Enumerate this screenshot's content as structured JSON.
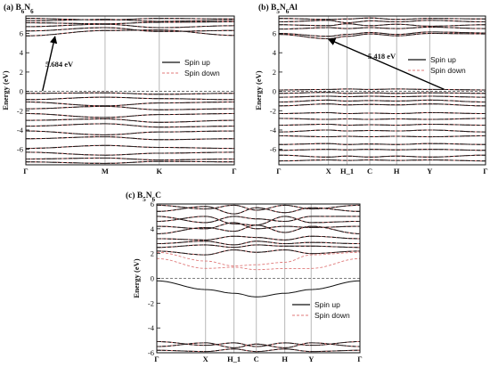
{
  "chart_data": [
    {
      "type": "line",
      "panel": "a",
      "title": "(a) B",
      "title_parts": [
        {
          "t": "(a) B",
          "sub": false
        },
        {
          "t": "6",
          "sub": true
        },
        {
          "t": "N",
          "sub": false
        },
        {
          "t": "6",
          "sub": true
        }
      ],
      "ylabel": "Energy (eV)",
      "ylim": [
        -7.6,
        7.8
      ],
      "yticks": [
        6,
        4,
        2,
        0,
        -2,
        -4,
        -6
      ],
      "ytick_labels": [
        "6",
        "4",
        "2",
        "0",
        "-2",
        "-4",
        "-6"
      ],
      "kpoints": [
        "Γ",
        "M",
        "K",
        "Γ"
      ],
      "kpos": [
        0,
        0.38,
        0.64,
        1
      ],
      "legend": [
        "Spin up",
        "Spin down"
      ],
      "legend_placement": "right",
      "annotation": "5.684 eV",
      "arrow": {
        "from": [
          0.08,
          0.05
        ],
        "to": [
          0.14,
          5.68
        ]
      },
      "fermi_level": 0,
      "bands": [
        {
          "kind": "cond",
          "y": [
            7.55,
            7.4,
            7.55,
            7.5
          ]
        },
        {
          "kind": "cond",
          "y": [
            7.3,
            7.45,
            7.25,
            7.35
          ]
        },
        {
          "kind": "cond",
          "y": [
            7.1,
            7.0,
            7.15,
            7.2
          ]
        },
        {
          "kind": "cond",
          "y": [
            6.7,
            6.95,
            6.6,
            6.8
          ]
        },
        {
          "kind": "cond",
          "y": [
            6.25,
            6.6,
            6.2,
            6.3
          ]
        },
        {
          "kind": "cond",
          "y": [
            5.75,
            6.3,
            6.35,
            5.8
          ]
        },
        {
          "kind": "val",
          "y": [
            -0.2,
            -0.15,
            -0.3,
            -0.2
          ]
        },
        {
          "kind": "val",
          "y": [
            -0.85,
            -0.6,
            -0.75,
            -0.85
          ]
        },
        {
          "kind": "val",
          "y": [
            -1.1,
            -1.5,
            -1.2,
            -1.1
          ]
        },
        {
          "kind": "val",
          "y": [
            -1.8,
            -1.55,
            -1.9,
            -1.8
          ]
        },
        {
          "kind": "val",
          "y": [
            -2.3,
            -2.7,
            -2.4,
            -2.3
          ]
        },
        {
          "kind": "val",
          "y": [
            -3.0,
            -2.85,
            -3.2,
            -3.0
          ]
        },
        {
          "kind": "val",
          "y": [
            -3.6,
            -3.35,
            -3.7,
            -3.6
          ]
        },
        {
          "kind": "val",
          "y": [
            -4.1,
            -4.5,
            -4.2,
            -4.1
          ]
        },
        {
          "kind": "val",
          "y": [
            -4.9,
            -4.7,
            -5.0,
            -4.9
          ]
        },
        {
          "kind": "val",
          "y": [
            -5.9,
            -5.6,
            -5.8,
            -5.9
          ]
        },
        {
          "kind": "val",
          "y": [
            -6.3,
            -6.6,
            -6.4,
            -6.3
          ]
        },
        {
          "kind": "val",
          "y": [
            -7.0,
            -6.9,
            -7.1,
            -7.0
          ]
        },
        {
          "kind": "val",
          "y": [
            -7.3,
            -7.45,
            -7.25,
            -7.3
          ]
        }
      ]
    },
    {
      "type": "line",
      "panel": "b",
      "title": "(b) B",
      "title_parts": [
        {
          "t": "(b) B",
          "sub": false
        },
        {
          "t": "5",
          "sub": true
        },
        {
          "t": "N",
          "sub": false
        },
        {
          "t": "6",
          "sub": true
        },
        {
          "t": "Al",
          "sub": false
        }
      ],
      "ylabel": "Energy (eV)",
      "ylim": [
        -7.6,
        7.8
      ],
      "yticks": [
        6,
        4,
        2,
        0,
        -2,
        -4,
        -6
      ],
      "ytick_labels": [
        "6",
        "4",
        "2",
        "0",
        "-2",
        "-4",
        "-6"
      ],
      "kpoints": [
        "Γ",
        "X",
        "H_1",
        "C",
        "H",
        "Y",
        "Γ"
      ],
      "kpos": [
        0,
        0.24,
        0.33,
        0.44,
        0.57,
        0.73,
        1
      ],
      "legend": [
        "Spin up",
        "Spin down"
      ],
      "legend_placement": "right",
      "annotation": "5.418 eV",
      "arrow": {
        "from": [
          0.8,
          0.2
        ],
        "to": [
          0.24,
          5.4
        ]
      },
      "fermi_level": 0,
      "bands": [
        {
          "kind": "cond",
          "y": [
            7.55,
            7.45,
            7.5,
            7.6,
            7.45,
            7.55,
            7.5
          ]
        },
        {
          "kind": "cond",
          "y": [
            7.2,
            7.35,
            7.1,
            7.3,
            7.2,
            7.35,
            7.2
          ]
        },
        {
          "kind": "cond",
          "y": [
            6.9,
            6.8,
            7.0,
            6.8,
            6.95,
            6.75,
            6.9
          ]
        },
        {
          "kind": "cond",
          "y": [
            6.45,
            6.6,
            6.5,
            6.6,
            6.5,
            6.65,
            6.5
          ]
        },
        {
          "kind": "cond",
          "y": [
            6.0,
            5.7,
            5.9,
            6.1,
            5.9,
            6.15,
            6.05
          ]
        },
        {
          "kind": "cond",
          "y": [
            5.9,
            5.45,
            5.7,
            5.95,
            5.75,
            6.0,
            5.95
          ]
        },
        {
          "kind": "val",
          "y": [
            0.15,
            0.2,
            0.25,
            0.2,
            0.25,
            0.2,
            0.15
          ]
        },
        {
          "kind": "val",
          "y": [
            -0.2,
            -0.1,
            -0.2,
            -0.15,
            -0.2,
            -0.15,
            -0.2
          ]
        },
        {
          "kind": "val",
          "y": [
            -0.6,
            -0.5,
            -0.55,
            -0.5,
            -0.55,
            -0.5,
            -0.6
          ]
        },
        {
          "kind": "val",
          "y": [
            -1.1,
            -0.9,
            -1.0,
            -0.95,
            -1.0,
            -0.9,
            -1.1
          ]
        },
        {
          "kind": "val",
          "y": [
            -1.5,
            -1.3,
            -1.4,
            -1.35,
            -1.4,
            -1.3,
            -1.5
          ]
        },
        {
          "kind": "val",
          "y": [
            -2.3,
            -2.2,
            -2.3,
            -2.25,
            -2.3,
            -2.2,
            -2.3
          ]
        },
        {
          "kind": "val",
          "y": [
            -2.8,
            -2.9,
            -2.85,
            -2.9,
            -2.85,
            -2.9,
            -2.8
          ]
        },
        {
          "kind": "val",
          "y": [
            -3.5,
            -3.4,
            -3.5,
            -3.45,
            -3.5,
            -3.4,
            -3.5
          ]
        },
        {
          "kind": "val",
          "y": [
            -4.2,
            -4.0,
            -4.1,
            -4.05,
            -4.1,
            -4.0,
            -4.2
          ]
        },
        {
          "kind": "val",
          "y": [
            -4.6,
            -4.7,
            -4.65,
            -4.7,
            -4.65,
            -4.7,
            -4.6
          ]
        },
        {
          "kind": "val",
          "y": [
            -5.5,
            -5.4,
            -5.5,
            -5.45,
            -5.5,
            -5.4,
            -5.5
          ]
        },
        {
          "kind": "val",
          "y": [
            -6.1,
            -6.0,
            -6.05,
            -6.0,
            -6.05,
            -6.0,
            -6.1
          ]
        },
        {
          "kind": "val",
          "y": [
            -6.6,
            -6.8,
            -6.7,
            -6.8,
            -6.7,
            -6.8,
            -6.6
          ]
        },
        {
          "kind": "val",
          "y": [
            -7.2,
            -7.1,
            -7.15,
            -7.1,
            -7.15,
            -7.1,
            -7.2
          ]
        }
      ]
    },
    {
      "type": "line",
      "panel": "c",
      "title": "(c) B",
      "title_parts": [
        {
          "t": "(c) B",
          "sub": false
        },
        {
          "t": "5",
          "sub": true
        },
        {
          "t": "N",
          "sub": false
        },
        {
          "t": "6",
          "sub": true
        },
        {
          "t": "C",
          "sub": false
        }
      ],
      "ylabel": "Energy (eV)",
      "ylim": [
        -6,
        6
      ],
      "yticks": [
        6,
        4,
        2,
        0,
        -2,
        -4,
        -6
      ],
      "ytick_labels": [
        "6",
        "4",
        "2",
        "0",
        "-2",
        "-4",
        "-6"
      ],
      "kpoints": [
        "Γ",
        "X",
        "H_1",
        "C",
        "H",
        "Y",
        "Γ"
      ],
      "kpos": [
        0,
        0.24,
        0.38,
        0.49,
        0.63,
        0.76,
        1
      ],
      "legend": [
        "Spin up",
        "Spin down"
      ],
      "legend_placement": "lower-right",
      "fermi_level": 0,
      "bands": [
        {
          "kind": "cond",
          "y": [
            5.9,
            5.6,
            5.9,
            5.5,
            5.9,
            5.6,
            5.9
          ]
        },
        {
          "kind": "cond",
          "y": [
            5.4,
            5.8,
            5.2,
            5.7,
            5.3,
            5.7,
            5.4
          ]
        },
        {
          "kind": "cond",
          "y": [
            5.0,
            4.5,
            5.0,
            4.8,
            4.6,
            5.0,
            5.0
          ]
        },
        {
          "kind": "cond",
          "y": [
            4.6,
            5.0,
            4.4,
            4.3,
            5.0,
            4.5,
            4.6
          ]
        },
        {
          "kind": "cond",
          "y": [
            4.2,
            4.0,
            4.5,
            4.0,
            4.2,
            4.1,
            4.2
          ]
        },
        {
          "kind": "cond",
          "y": [
            3.6,
            4.1,
            3.8,
            4.3,
            3.7,
            4.2,
            3.6
          ]
        },
        {
          "kind": "cond",
          "y": [
            3.2,
            3.1,
            3.4,
            3.3,
            3.1,
            3.4,
            3.2
          ]
        },
        {
          "kind": "cond",
          "y": [
            2.8,
            3.0,
            2.7,
            3.0,
            2.8,
            2.9,
            2.8
          ]
        },
        {
          "kind": "cond",
          "y": [
            2.5,
            2.7,
            2.5,
            2.7,
            2.6,
            2.6,
            2.5
          ]
        },
        {
          "kind": "cond",
          "y": [
            2.2,
            1.9,
            2.3,
            2.1,
            2.3,
            2.0,
            2.2
          ]
        },
        {
          "kind": "spin",
          "y": [
            2.1,
            1.4,
            1.0,
            1.1,
            1.3,
            1.9,
            2.1
          ]
        },
        {
          "kind": "spin",
          "y": [
            1.6,
            0.8,
            0.9,
            0.7,
            0.8,
            0.8,
            1.6
          ]
        },
        {
          "kind": "gapup",
          "y": [
            -0.2,
            -0.9,
            -1.2,
            -1.5,
            -1.2,
            -0.9,
            -0.2
          ]
        },
        {
          "kind": "val",
          "y": [
            -5.1,
            -5.4,
            -5.2,
            -5.5,
            -5.2,
            -5.4,
            -5.1
          ]
        },
        {
          "kind": "val",
          "y": [
            -5.5,
            -5.2,
            -5.6,
            -5.3,
            -5.6,
            -5.2,
            -5.5
          ]
        },
        {
          "kind": "val",
          "y": [
            -5.8,
            -5.9,
            -5.7,
            -5.9,
            -5.7,
            -5.9,
            -5.8
          ]
        }
      ]
    }
  ]
}
